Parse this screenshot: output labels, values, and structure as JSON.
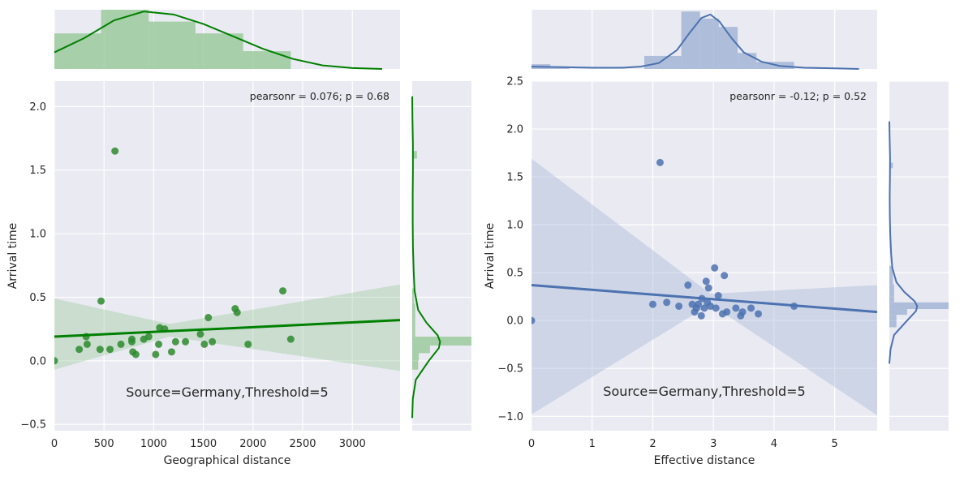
{
  "colors": {
    "panel_bg": "#EAEAF2",
    "grid": "#FFFFFF",
    "green": "#008000",
    "green_fill": "#90C590",
    "green_point": "#2E8B2E",
    "blue": "#4C72B0",
    "blue_fill": "#A3B6D6",
    "blue_point": "#4C72B0",
    "tick_text": "#262626"
  },
  "chart_data": [
    {
      "type": "scatter",
      "style": "jointplot with linear regression, 95% confidence band, marginal histograms and KDEs",
      "xlabel": "Geographical distance",
      "ylabel": "Arrival time",
      "xlim": [
        0,
        3480
      ],
      "ylim": [
        -0.55,
        2.2
      ],
      "xticks": [
        0,
        500,
        1000,
        1500,
        2000,
        2500,
        3000
      ],
      "xtick_labels": [
        "0",
        "500",
        "1000",
        "1500",
        "2000",
        "2500",
        "3000"
      ],
      "yticks": [
        -0.5,
        0.0,
        0.5,
        1.0,
        1.5,
        2.0
      ],
      "ytick_labels": [
        "−0.5",
        "0.0",
        "0.5",
        "1.0",
        "1.5",
        "2.0"
      ],
      "annotation": "pearsonr = 0.076; p = 0.68",
      "label": "Source=Germany,Threshold=5",
      "grid": true,
      "points": [
        [
          0,
          0.0
        ],
        [
          250,
          0.09
        ],
        [
          320,
          0.19
        ],
        [
          330,
          0.13
        ],
        [
          460,
          0.09
        ],
        [
          470,
          0.47
        ],
        [
          560,
          0.09
        ],
        [
          610,
          1.65
        ],
        [
          670,
          0.13
        ],
        [
          780,
          0.17
        ],
        [
          780,
          0.15
        ],
        [
          790,
          0.07
        ],
        [
          820,
          0.05
        ],
        [
          900,
          0.17
        ],
        [
          950,
          0.19
        ],
        [
          1020,
          0.05
        ],
        [
          1050,
          0.13
        ],
        [
          1060,
          0.26
        ],
        [
          1110,
          0.25
        ],
        [
          1180,
          0.07
        ],
        [
          1220,
          0.15
        ],
        [
          1320,
          0.15
        ],
        [
          1470,
          0.21
        ],
        [
          1510,
          0.13
        ],
        [
          1550,
          0.34
        ],
        [
          1590,
          0.15
        ],
        [
          1820,
          0.41
        ],
        [
          1840,
          0.38
        ],
        [
          1950,
          0.13
        ],
        [
          2300,
          0.55
        ],
        [
          2380,
          0.17
        ]
      ],
      "regression": {
        "x": [
          0,
          3480
        ],
        "y": [
          0.19,
          0.32
        ]
      },
      "ci_band": {
        "x": [
          0,
          1160,
          3480
        ],
        "upper": [
          0.49,
          0.29,
          0.6
        ],
        "lower": [
          -0.07,
          0.19,
          -0.08
        ]
      },
      "marginal_x_hist": {
        "bins": [
          0,
          470,
          950,
          1420,
          1900,
          2380
        ],
        "heights": [
          0.6,
          1.0,
          0.8,
          0.6,
          0.3
        ],
        "kde_x": [
          0,
          300,
          600,
          900,
          1200,
          1500,
          1800,
          2100,
          2400,
          2700,
          3000,
          3300
        ],
        "kde_y": [
          0.28,
          0.52,
          0.82,
          0.97,
          0.92,
          0.76,
          0.55,
          0.34,
          0.17,
          0.06,
          0.015,
          0.0
        ]
      },
      "marginal_y_hist": {
        "bins": [
          -0.07,
          0.0,
          0.06,
          0.12,
          0.19,
          0.25,
          0.32,
          0.38,
          0.45,
          0.51,
          0.57,
          1.59,
          1.65
        ],
        "widths": [
          0.1,
          0.11,
          0.3,
          1.0,
          0.05,
          0.05,
          0.05,
          0.05,
          0.03,
          0.03,
          0.0,
          0.08
        ],
        "kde_y": [
          -0.45,
          -0.3,
          -0.15,
          0.0,
          0.1,
          0.15,
          0.2,
          0.3,
          0.4,
          0.55,
          0.7,
          0.9,
          1.1,
          1.3,
          1.5,
          1.7,
          1.9,
          2.08
        ],
        "kde_w": [
          0.0,
          0.01,
          0.06,
          0.28,
          0.45,
          0.47,
          0.43,
          0.24,
          0.1,
          0.04,
          0.025,
          0.012,
          0.008,
          0.008,
          0.012,
          0.012,
          0.004,
          0.0
        ]
      }
    },
    {
      "type": "scatter",
      "style": "jointplot with linear regression, 95% confidence band, marginal histograms and KDEs",
      "xlabel": "Effective distance",
      "ylabel": "Arrival time",
      "xlim": [
        0,
        5.7
      ],
      "ylim": [
        -1.15,
        2.5
      ],
      "xticks": [
        0,
        1,
        2,
        3,
        4,
        5
      ],
      "xtick_labels": [
        "0",
        "1",
        "2",
        "3",
        "4",
        "5"
      ],
      "yticks": [
        -1.0,
        -0.5,
        0.0,
        0.5,
        1.0,
        1.5,
        2.0,
        2.5
      ],
      "ytick_labels": [
        "−1.0",
        "−0.5",
        "0.0",
        "0.5",
        "1.0",
        "1.5",
        "2.0",
        "2.5"
      ],
      "annotation": "pearsonr = -0.12; p = 0.52",
      "label": "Source=Germany,Threshold=5",
      "grid": true,
      "points": [
        [
          0.0,
          0.0
        ],
        [
          2.0,
          0.17
        ],
        [
          2.12,
          1.65
        ],
        [
          2.23,
          0.19
        ],
        [
          2.43,
          0.15
        ],
        [
          2.58,
          0.37
        ],
        [
          2.65,
          0.17
        ],
        [
          2.69,
          0.09
        ],
        [
          2.72,
          0.13
        ],
        [
          2.75,
          0.17
        ],
        [
          2.8,
          0.05
        ],
        [
          2.81,
          0.23
        ],
        [
          2.85,
          0.13
        ],
        [
          2.88,
          0.41
        ],
        [
          2.9,
          0.19
        ],
        [
          2.92,
          0.34
        ],
        [
          2.95,
          0.15
        ],
        [
          3.02,
          0.55
        ],
        [
          3.04,
          0.13
        ],
        [
          3.08,
          0.26
        ],
        [
          3.15,
          0.07
        ],
        [
          3.18,
          0.47
        ],
        [
          3.22,
          0.09
        ],
        [
          3.37,
          0.13
        ],
        [
          3.45,
          0.05
        ],
        [
          3.48,
          0.09
        ],
        [
          3.62,
          0.13
        ],
        [
          3.74,
          0.07
        ],
        [
          4.33,
          0.15
        ]
      ],
      "regression": {
        "x": [
          0,
          5.7
        ],
        "y": [
          0.37,
          0.09
        ]
      },
      "ci_band": {
        "x": [
          0,
          2.95,
          5.7
        ],
        "upper": [
          1.69,
          0.28,
          0.37
        ],
        "lower": [
          -0.98,
          0.17,
          -0.99
        ]
      },
      "marginal_x_hist": {
        "bins": [
          0.0,
          0.31,
          0.62,
          0.93,
          1.24,
          1.55,
          1.86,
          2.47,
          2.78,
          3.09,
          3.4,
          3.71,
          4.33
        ],
        "heights": [
          0.08,
          0.02,
          0.0,
          0.0,
          0.0,
          0.0,
          0.22,
          0.97,
          0.85,
          0.71,
          0.27,
          0.12
        ],
        "kde_x": [
          0.0,
          0.5,
          1.0,
          1.5,
          1.8,
          2.1,
          2.4,
          2.6,
          2.8,
          2.95,
          3.1,
          3.3,
          3.5,
          3.8,
          4.1,
          4.5,
          5.0,
          5.4
        ],
        "kde_y": [
          0.04,
          0.03,
          0.02,
          0.02,
          0.04,
          0.1,
          0.32,
          0.6,
          0.86,
          0.92,
          0.8,
          0.52,
          0.28,
          0.12,
          0.05,
          0.02,
          0.01,
          0.0
        ]
      },
      "marginal_y_hist": {
        "bins": [
          -0.07,
          0.0,
          0.06,
          0.12,
          0.19,
          0.25,
          0.32,
          0.38,
          0.45,
          0.51,
          0.57,
          1.59,
          1.65
        ],
        "widths": [
          0.12,
          0.12,
          0.3,
          1.0,
          0.08,
          0.08,
          0.08,
          0.06,
          0.06,
          0.06,
          0.0,
          0.06
        ],
        "kde_y": [
          -0.45,
          -0.3,
          -0.15,
          0.0,
          0.1,
          0.15,
          0.2,
          0.3,
          0.4,
          0.55,
          0.7,
          0.9,
          1.1,
          1.3,
          1.5,
          1.7,
          1.9,
          2.08
        ],
        "kde_w": [
          0.0,
          0.02,
          0.08,
          0.3,
          0.45,
          0.47,
          0.43,
          0.25,
          0.12,
          0.05,
          0.03,
          0.015,
          0.008,
          0.006,
          0.01,
          0.012,
          0.005,
          0.0
        ]
      }
    }
  ]
}
